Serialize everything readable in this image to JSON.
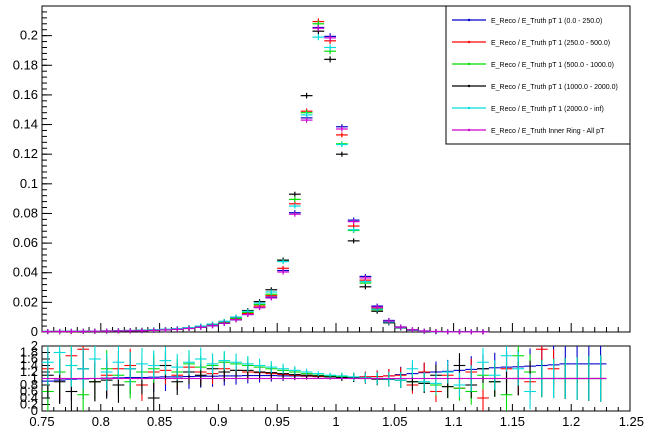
{
  "chart_data": [
    {
      "type": "scatter",
      "title": "",
      "xlabel": "",
      "ylabel": "",
      "xlim": [
        0.75,
        1.25
      ],
      "ylim": [
        0,
        0.22
      ],
      "y_ticks": [
        0,
        0.02,
        0.04,
        0.06,
        0.08,
        0.1,
        0.12,
        0.14,
        0.16,
        0.18,
        0.2
      ],
      "y_tick_labels": [
        "0",
        "0.02",
        "0.04",
        "0.06",
        "0.08",
        "0.1",
        "0.12",
        "0.14",
        "0.16",
        "0.18",
        "0.2"
      ],
      "grid": false,
      "legend": "top-right",
      "x": [
        0.755,
        0.765,
        0.775,
        0.785,
        0.795,
        0.805,
        0.815,
        0.825,
        0.835,
        0.845,
        0.855,
        0.865,
        0.875,
        0.885,
        0.895,
        0.905,
        0.915,
        0.925,
        0.935,
        0.945,
        0.955,
        0.965,
        0.975,
        0.985,
        0.995,
        1.005,
        1.015,
        1.025,
        1.035,
        1.045,
        1.055,
        1.065,
        1.075,
        1.085,
        1.095,
        1.105,
        1.115,
        1.125
      ],
      "series": [
        {
          "name": "E_Reco / E_Truth pT 1 (0.0 - 250.0)",
          "color": "#0000cc",
          "values": [
            0.0003,
            0.0003,
            0.0004,
            0.0004,
            0.0005,
            0.0006,
            0.0007,
            0.0008,
            0.0009,
            0.0011,
            0.0014,
            0.0018,
            0.0024,
            0.0032,
            0.0042,
            0.0058,
            0.0082,
            0.0118,
            0.0165,
            0.0235,
            0.0415,
            0.0805,
            0.1445,
            0.2055,
            0.1995,
            0.1385,
            0.0755,
            0.0375,
            0.0175,
            0.0078,
            0.0034,
            0.0015,
            0.0007,
            0.0003,
            0.0002,
            0.0001,
            0.0001,
            0.0001
          ]
        },
        {
          "name": "E_Reco / E_Truth pT 1 (250.0 - 500.0)",
          "color": "#ff0000",
          "values": [
            0.0003,
            0.0003,
            0.0003,
            0.0004,
            0.0005,
            0.0006,
            0.0007,
            0.0008,
            0.001,
            0.0012,
            0.0015,
            0.0019,
            0.0025,
            0.0034,
            0.0045,
            0.0062,
            0.0088,
            0.0125,
            0.0175,
            0.0245,
            0.043,
            0.0865,
            0.149,
            0.2095,
            0.1965,
            0.133,
            0.0715,
            0.035,
            0.016,
            0.0071,
            0.0031,
            0.0013,
            0.0006,
            0.0003,
            0.0001,
            0.0001,
            0.0001,
            0.0001
          ]
        },
        {
          "name": "E_Reco / E_Truth pT 1 (500.0 - 1000.0)",
          "color": "#00dd00",
          "values": [
            0.0003,
            0.0003,
            0.0004,
            0.0004,
            0.0005,
            0.0006,
            0.0007,
            0.0009,
            0.0011,
            0.0013,
            0.0016,
            0.0021,
            0.0027,
            0.0036,
            0.0048,
            0.0066,
            0.0093,
            0.0132,
            0.0185,
            0.0255,
            0.0485,
            0.0895,
            0.148,
            0.208,
            0.1895,
            0.127,
            0.0685,
            0.033,
            0.015,
            0.0066,
            0.0028,
            0.0012,
            0.0005,
            0.0002,
            0.0001,
            0.0001,
            0.0001,
            0.0001
          ]
        },
        {
          "name": "E_Reco / E_Truth pT 1 (1000.0 - 2000.0)",
          "color": "#000000",
          "values": [
            0.0003,
            0.0004,
            0.0004,
            0.0005,
            0.0006,
            0.0007,
            0.0008,
            0.001,
            0.0012,
            0.0014,
            0.0017,
            0.0022,
            0.0029,
            0.0039,
            0.0052,
            0.0071,
            0.01,
            0.0145,
            0.0205,
            0.0285,
            0.0485,
            0.093,
            0.1595,
            0.203,
            0.184,
            0.12,
            0.0615,
            0.0305,
            0.014,
            0.0062,
            0.0027,
            0.0012,
            0.0005,
            0.0002,
            0.0001,
            0.0001,
            0.0001,
            0.0001
          ]
        },
        {
          "name": "E_Reco / E_Truth pT 1 (2000.0 - inf)",
          "color": "#00dddd",
          "values": [
            0.0004,
            0.0004,
            0.0005,
            0.0005,
            0.0006,
            0.0007,
            0.0009,
            0.001,
            0.0012,
            0.0015,
            0.0018,
            0.0023,
            0.003,
            0.004,
            0.0053,
            0.0072,
            0.01,
            0.014,
            0.0195,
            0.027,
            0.0475,
            0.085,
            0.1465,
            0.199,
            0.192,
            0.1265,
            0.069,
            0.034,
            0.0155,
            0.0068,
            0.0029,
            0.0012,
            0.0005,
            0.0002,
            0.0001,
            0.0001,
            0.0001,
            0.0001
          ]
        },
        {
          "name": "E_Reco / E_Truth Inner Ring - All pT",
          "color": "#cc00cc",
          "values": [
            0.0003,
            0.0003,
            0.0004,
            0.0004,
            0.0005,
            0.0006,
            0.0007,
            0.0008,
            0.0009,
            0.0011,
            0.0014,
            0.0018,
            0.0024,
            0.0032,
            0.0043,
            0.0059,
            0.0083,
            0.0118,
            0.0165,
            0.023,
            0.0405,
            0.0795,
            0.143,
            0.205,
            0.1985,
            0.137,
            0.0745,
            0.0365,
            0.0168,
            0.0074,
            0.0032,
            0.0014,
            0.0006,
            0.0003,
            0.0001,
            0.0001,
            0.0001,
            0.0001
          ]
        }
      ],
      "legend_entries": [
        "E_Reco / E_Truth pT 1 (0.0 - 250.0)",
        "E_Reco / E_Truth pT 1 (250.0 - 500.0)",
        "E_Reco / E_Truth pT 1 (500.0 - 1000.0)",
        "E_Reco / E_Truth pT 1 (1000.0 - 2000.0)",
        "E_Reco / E_Truth pT 1 (2000.0 - inf)",
        "E_Reco / E_Truth Inner Ring - All pT"
      ]
    },
    {
      "type": "scatter",
      "title": "",
      "xlabel": "",
      "ylabel": "",
      "xlim": [
        0.75,
        1.25
      ],
      "ylim": [
        0,
        2
      ],
      "x_ticks": [
        0.75,
        0.8,
        0.85,
        0.9,
        0.95,
        1,
        1.05,
        1.1,
        1.15,
        1.2,
        1.25
      ],
      "x_tick_labels": [
        "0.75",
        "0.8",
        "0.85",
        "0.9",
        "0.95",
        "1",
        "1.05",
        "1.1",
        "1.15",
        "1.2",
        "1.25"
      ],
      "y_tick_labels": [
        "0",
        "0.2",
        "0.4",
        "0.6",
        "0.8",
        "1",
        "1.2",
        "1.4",
        "1.6",
        "1.8",
        "2"
      ],
      "grid": false,
      "x": [
        0.755,
        0.765,
        0.775,
        0.785,
        0.795,
        0.805,
        0.815,
        0.825,
        0.835,
        0.845,
        0.855,
        0.865,
        0.875,
        0.885,
        0.895,
        0.905,
        0.915,
        0.925,
        0.935,
        0.945,
        0.955,
        0.965,
        0.975,
        0.985,
        0.995,
        1.005,
        1.015,
        1.025,
        1.035,
        1.045,
        1.055,
        1.065,
        1.075,
        1.085,
        1.095,
        1.105,
        1.115,
        1.125,
        1.135,
        1.145,
        1.155,
        1.165,
        1.175,
        1.185,
        1.195,
        1.205,
        1.215,
        1.225
      ],
      "series": [
        {
          "name": "E_Reco / E_Truth pT 1 (0.0 - 250.0)",
          "color": "#0000cc",
          "values": [
            0.92,
            0.95,
            0.98,
            0.99,
            1.0,
            1.01,
            1.02,
            1.03,
            1.03,
            1.04,
            1.05,
            1.05,
            1.06,
            1.07,
            1.07,
            1.08,
            1.08,
            1.09,
            1.09,
            1.09,
            1.08,
            1.08,
            1.07,
            1.06,
            1.05,
            1.04,
            1.04,
            1.05,
            1.06,
            1.08,
            1.12,
            1.15,
            1.18,
            1.2,
            1.22,
            1.25,
            1.28,
            1.3,
            1.33,
            1.35,
            1.36,
            1.38,
            1.4,
            1.42,
            1.45,
            1.45,
            1.45,
            1.45
          ]
        },
        {
          "name": "E_Reco / E_Truth pT 1 (250.0 - 500.0)",
          "color": "#ff0000",
          "values": [
            1.3,
            1.0,
            1.7,
            1.9,
            0.9,
            1.1,
            1.3,
            1.4,
            0.8,
            1.2,
            1.25,
            1.1,
            1.35,
            1.2,
            1.15,
            1.3,
            1.25,
            1.2,
            1.18,
            1.15,
            1.12,
            1.1,
            1.08,
            1.06,
            1.05,
            1.04,
            1.04,
            1.05,
            1.06,
            1.08,
            1.1,
            0.8,
            1.2,
            0.6,
            1.1,
            0.7,
            1.2,
            0.4,
            1.0,
            1.3,
            1.0,
            0.9,
            1.9,
            1.3,
            1.0,
            1.0,
            1.0,
            1.0
          ]
        },
        {
          "name": "E_Reco / E_Truth pT 1 (500.0 - 1000.0)",
          "color": "#00dd00",
          "values": [
            0.6,
            1.2,
            1.4,
            0.5,
            0.9,
            1.3,
            1.1,
            0.9,
            1.2,
            1.3,
            1.4,
            1.2,
            1.45,
            1.35,
            1.4,
            1.5,
            1.45,
            1.4,
            1.35,
            1.3,
            1.25,
            1.2,
            1.15,
            1.1,
            1.08,
            1.05,
            1.04,
            1.02,
            1.0,
            0.98,
            0.95,
            0.9,
            0.85,
            0.8,
            0.75,
            0.7,
            0.6,
            1.1,
            0.9,
            0.5,
            1.7,
            1.2,
            1.0,
            1.0,
            1.0,
            1.0,
            1.0,
            1.0
          ]
        },
        {
          "name": "E_Reco / E_Truth pT 1 (1000.0 - 2000.0)",
          "color": "#000000",
          "values": [
            1.1,
            0.9,
            0.6,
            1.3,
            0.9,
            0.95,
            0.8,
            1.3,
            1.0,
            0.4,
            1.4,
            0.9,
            1.2,
            1.1,
            1.3,
            1.2,
            1.25,
            1.25,
            1.2,
            1.18,
            1.15,
            1.12,
            1.1,
            1.08,
            1.05,
            1.03,
            1.02,
            1.0,
            0.98,
            0.97,
            0.95,
            0.9,
            0.85,
            1.1,
            0.75,
            1.4,
            0.8,
            1.3,
            0.9,
            1.0,
            1.0,
            1.0,
            1.0,
            1.0,
            1.0,
            1.0,
            1.0,
            1.0
          ]
        },
        {
          "name": "E_Reco / E_Truth pT 1 (2000.0 - inf)",
          "color": "#00dddd",
          "values": [
            1.5,
            1.8,
            1.4,
            1.3,
            1.6,
            1.2,
            1.5,
            1.3,
            1.45,
            1.4,
            1.55,
            1.35,
            1.5,
            1.6,
            1.45,
            1.55,
            1.5,
            1.45,
            1.4,
            1.35,
            1.3,
            1.25,
            1.2,
            1.15,
            1.1,
            1.08,
            1.05,
            1.02,
            1.0,
            0.98,
            0.95,
            1.3,
            0.9,
            0.85,
            1.2,
            0.8,
            1.0,
            1.5,
            1.1,
            1.7,
            1.3,
            0.6,
            1.0,
            1.0,
            1.0,
            1.0,
            1.0,
            1.0
          ]
        },
        {
          "name": "E_Reco / E_Truth Inner Ring - All pT",
          "color": "#cc00cc",
          "values": [
            1.0,
            1.0,
            1.0,
            1.0,
            1.0,
            1.0,
            1.0,
            1.0,
            1.0,
            1.0,
            1.0,
            1.0,
            1.0,
            1.0,
            1.0,
            1.0,
            1.0,
            1.0,
            1.0,
            1.0,
            1.0,
            1.0,
            1.0,
            1.0,
            1.0,
            1.0,
            1.0,
            1.0,
            1.0,
            1.0,
            1.0,
            1.0,
            1.0,
            1.0,
            1.0,
            1.0,
            1.0,
            1.0,
            1.0,
            1.0,
            1.0,
            1.0,
            1.0,
            1.0,
            1.0,
            1.0,
            1.0,
            1.0
          ]
        }
      ]
    }
  ]
}
